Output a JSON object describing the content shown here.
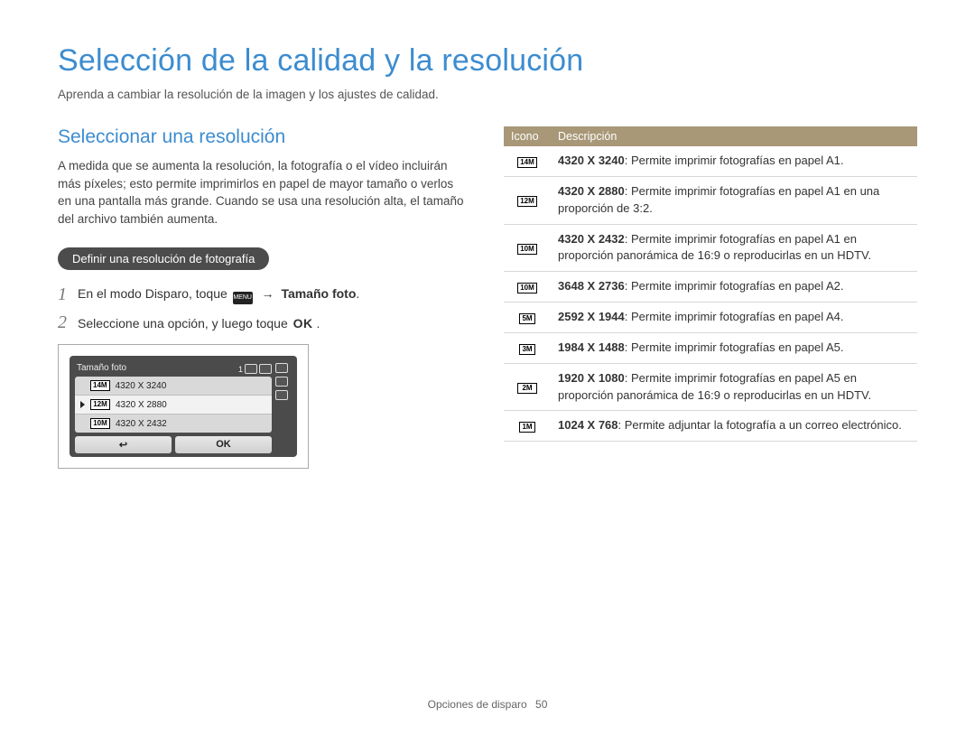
{
  "page": {
    "title": "Selección de la calidad y la resolución",
    "intro": "Aprenda a cambiar la resolución de la imagen y los ajustes de calidad.",
    "footer_label": "Opciones de disparo",
    "footer_page": "50"
  },
  "left": {
    "section_title": "Seleccionar una resolución",
    "body": "A medida que se aumenta la resolución, la fotografía o el vídeo incluirán más píxeles; esto permite imprimirlos en papel de mayor tamaño o verlos en una pantalla más grande. Cuando se usa una resolución alta, el tamaño del archivo también aumenta.",
    "pill": "Definir una resolución de fotografía",
    "steps": [
      {
        "num": "1",
        "pre": "En el modo Disparo, toque ",
        "menu_label": "MENU",
        "arrow": "→",
        "bold": "Tamaño foto",
        "post": "."
      },
      {
        "num": "2",
        "pre": "Seleccione una opción, y luego toque ",
        "ok": "OK",
        "post": " ."
      }
    ],
    "lcd": {
      "title": "Tamaño foto",
      "top_right": "1",
      "rows": [
        {
          "icon": "14M",
          "label": "4320 X 3240",
          "selected": false
        },
        {
          "icon": "12M",
          "label": "4320 X 2880",
          "selected": true
        },
        {
          "icon": "10M",
          "label": "4320 X 2432",
          "selected": false
        }
      ],
      "back": "↩",
      "ok": "OK"
    }
  },
  "table": {
    "header_icon": "Icono",
    "header_desc": "Descripción",
    "rows": [
      {
        "icon": "14M",
        "wide": false,
        "res": "4320 X 3240",
        "desc": ": Permite imprimir fotografías en papel A1."
      },
      {
        "icon": "12M",
        "wide": true,
        "res": "4320 X 2880",
        "desc": ": Permite imprimir fotografías en papel A1 en una proporción de 3:2."
      },
      {
        "icon": "10M",
        "wide": true,
        "res": "4320 X 2432",
        "desc": ": Permite imprimir fotografías en papel A1 en proporción panorámica de 16:9 o reproducirlas en un HDTV."
      },
      {
        "icon": "10M",
        "wide": false,
        "res": "3648 X 2736",
        "desc": ": Permite imprimir fotografías en papel A2."
      },
      {
        "icon": "5M",
        "wide": false,
        "res": "2592 X 1944",
        "desc": ": Permite imprimir fotografías en papel A4."
      },
      {
        "icon": "3M",
        "wide": false,
        "res": "1984 X 1488",
        "desc": ": Permite imprimir fotografías en papel A5."
      },
      {
        "icon": "2M",
        "wide": true,
        "res": "1920 X 1080",
        "desc": ": Permite imprimir fotografías en papel A5 en proporción panorámica de 16:9 o reproducirlas en un HDTV."
      },
      {
        "icon": "1M",
        "wide": false,
        "res": "1024 X 768",
        "desc": ": Permite adjuntar la fotografía a un correo electrónico."
      }
    ]
  },
  "colors": {
    "accent": "#3c8cd0",
    "pill_bg": "#4c4c4c",
    "table_header_bg": "#a89878",
    "border": "#d8d8d8"
  }
}
